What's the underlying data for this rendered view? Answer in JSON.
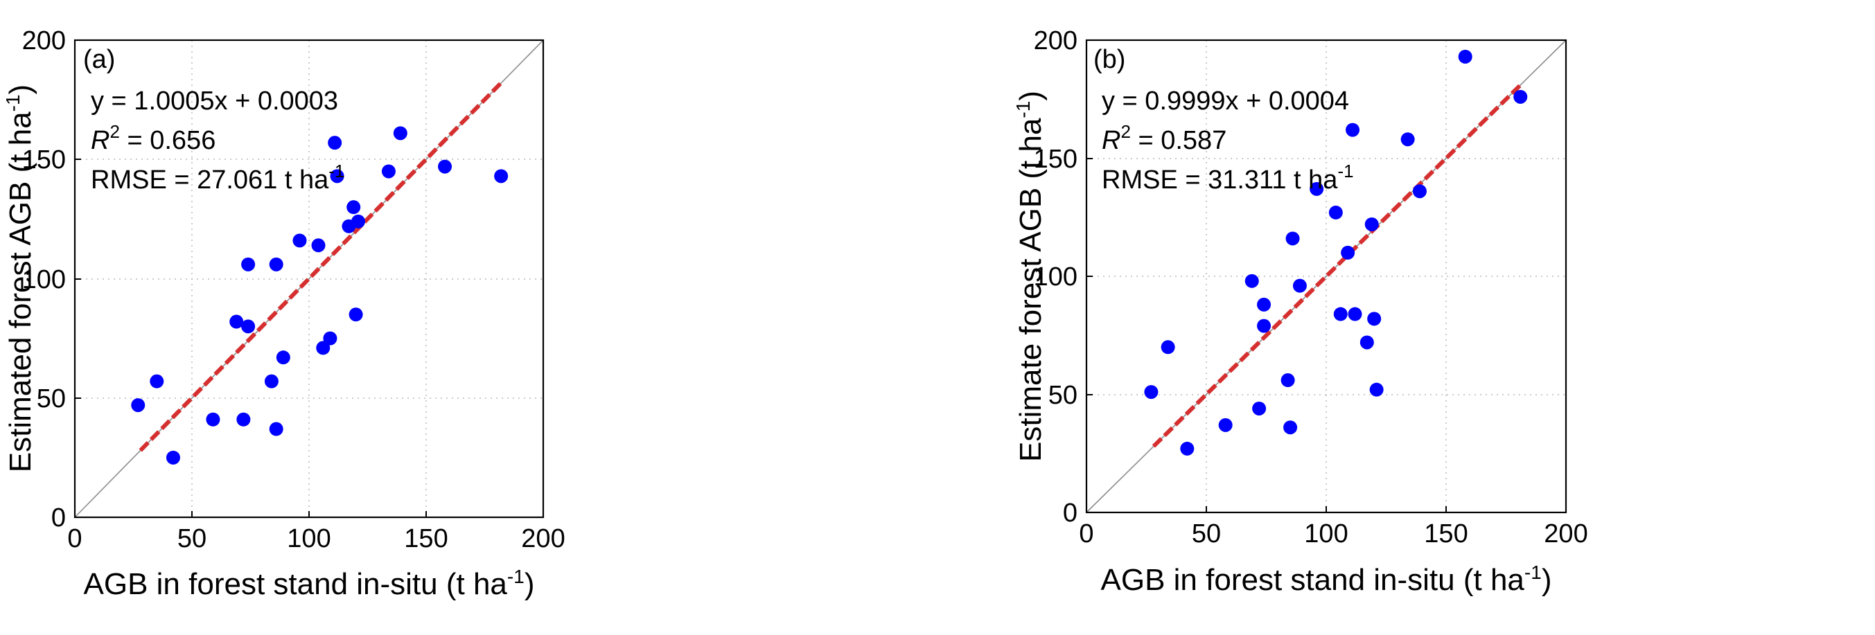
{
  "chart_data": [
    {
      "type": "scatter",
      "panel_label": "(a)",
      "xlabel": "AGB in forest stand in-situ (t ha",
      "xlabel_unit_exp": "-1",
      "xlabel_close": ")",
      "ylabel": "Estimated forest AGB (t ha",
      "ylabel_unit_exp": "-1",
      "ylabel_close": ")",
      "xlim": [
        0,
        200
      ],
      "ylim": [
        0,
        200
      ],
      "xticks": [
        0,
        50,
        100,
        150,
        200
      ],
      "yticks": [
        0,
        50,
        100,
        150,
        200
      ],
      "grid": true,
      "equation": "y = 1.0005x + 0.0003",
      "r2_label": "R",
      "r2_exp": "2",
      "r2_value": " = 0.656",
      "rmse_text": "RMSE = 27.061 t ha",
      "rmse_exp": "-1",
      "fit": {
        "slope": 1.0005,
        "intercept": 0.0003,
        "x_range": [
          28,
          182
        ]
      },
      "identity_line": true,
      "colors": {
        "points": "#0000ff",
        "fit": "#d62f2f",
        "identity": "#8c8c8c"
      },
      "points": [
        [
          27,
          47
        ],
        [
          35,
          57
        ],
        [
          42,
          25
        ],
        [
          59,
          41
        ],
        [
          69,
          82
        ],
        [
          72,
          41
        ],
        [
          74,
          106
        ],
        [
          74,
          80
        ],
        [
          84,
          57
        ],
        [
          86,
          106
        ],
        [
          86,
          37
        ],
        [
          89,
          67
        ],
        [
          96,
          116
        ],
        [
          104,
          114
        ],
        [
          106,
          71
        ],
        [
          109,
          75
        ],
        [
          111,
          157
        ],
        [
          112,
          143
        ],
        [
          117,
          122
        ],
        [
          119,
          130
        ],
        [
          120,
          85
        ],
        [
          121,
          124
        ],
        [
          134,
          145
        ],
        [
          139,
          161
        ],
        [
          158,
          147
        ],
        [
          182,
          143
        ]
      ]
    },
    {
      "type": "scatter",
      "panel_label": "(b)",
      "xlabel": "AGB in forest stand in-situ (t ha",
      "xlabel_unit_exp": "-1",
      "xlabel_close": ")",
      "ylabel": "Estimate forest AGB (t ha",
      "ylabel_unit_exp": "-1",
      "ylabel_close": ")",
      "xlim": [
        0,
        200
      ],
      "ylim": [
        0,
        200
      ],
      "xticks": [
        0,
        50,
        100,
        150,
        200
      ],
      "yticks": [
        0,
        50,
        100,
        150,
        200
      ],
      "grid": true,
      "equation": "y = 0.9999x + 0.0004",
      "r2_label": "R",
      "r2_exp": "2",
      "r2_value": " = 0.587",
      "rmse_text": "RMSE = 31.311 t ha",
      "rmse_exp": "-1",
      "fit": {
        "slope": 0.9999,
        "intercept": 0.0004,
        "x_range": [
          28,
          181
        ]
      },
      "identity_line": true,
      "colors": {
        "points": "#0000ff",
        "fit": "#d62f2f",
        "identity": "#8c8c8c"
      },
      "points": [
        [
          27,
          51
        ],
        [
          34,
          70
        ],
        [
          42,
          27
        ],
        [
          58,
          37
        ],
        [
          69,
          98
        ],
        [
          72,
          44
        ],
        [
          74,
          88
        ],
        [
          74,
          79
        ],
        [
          84,
          56
        ],
        [
          85,
          36
        ],
        [
          86,
          116
        ],
        [
          89,
          96
        ],
        [
          96,
          137
        ],
        [
          104,
          127
        ],
        [
          106,
          84
        ],
        [
          109,
          110
        ],
        [
          111,
          162
        ],
        [
          112,
          84
        ],
        [
          117,
          72
        ],
        [
          119,
          122
        ],
        [
          120,
          82
        ],
        [
          121,
          52
        ],
        [
          134,
          158
        ],
        [
          139,
          136
        ],
        [
          158,
          193
        ],
        [
          181,
          176
        ]
      ]
    }
  ]
}
